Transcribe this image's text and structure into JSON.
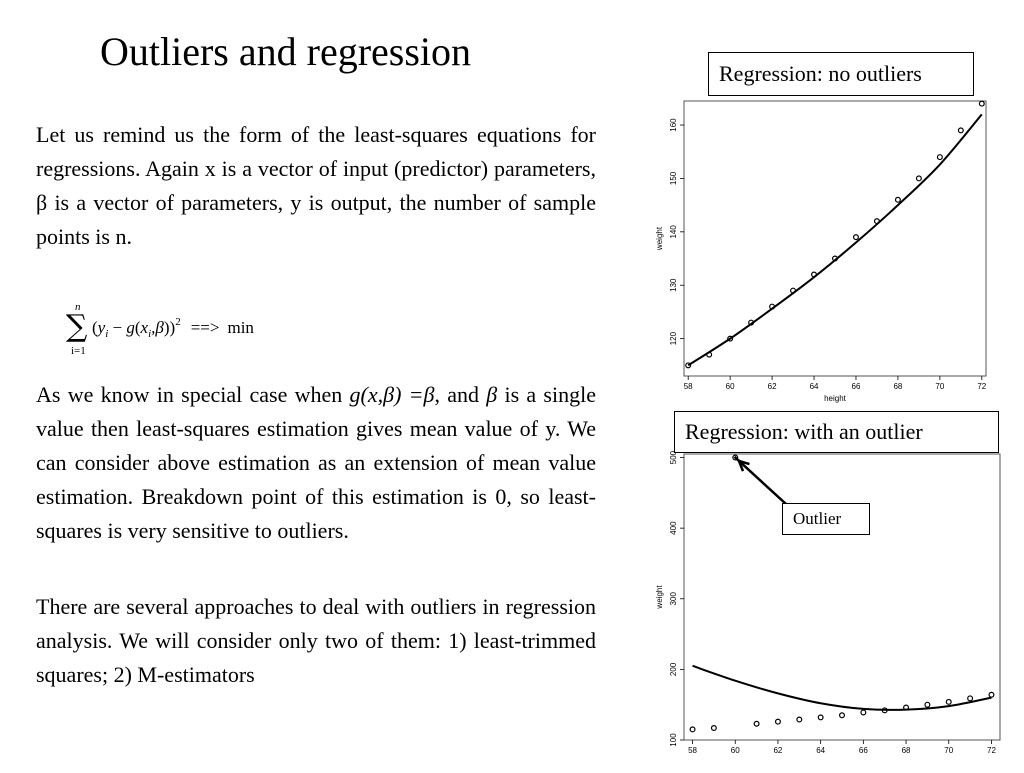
{
  "slide": {
    "title": "Outliers and regression",
    "paragraph1": "Let us remind us the form of the least-squares equations for regressions. Again x is a vector of input (predictor) parameters, β is a vector of parameters, y is output, the number of sample points is n.",
    "formula": {
      "upper": "n",
      "lower": "i=1",
      "sum": "∑",
      "open": "(",
      "y": "y",
      "sub_i1": "i",
      "minus": " − ",
      "g": "g",
      "paren_x": "(",
      "x": "x",
      "sub_i2": "i",
      "comma_beta": ",β",
      "close": "))",
      "power": "2",
      "arrow": "==>",
      "min": "min"
    },
    "paragraph2": {
      "before_g": "As we know in special case when ",
      "g_expr": "g(x,β) =β",
      "after_g": ", and ",
      "beta": "β",
      "rest": " is a single value then least-squares estimation gives mean value of y. We can consider above estimation as an extension of mean value estimation. Breakdown point of this estimation is 0, so least-squares is very sensitive to outliers."
    },
    "paragraph3": "There are several approaches to deal with outliers in regression analysis. We will consider only two of them: 1) least-trimmed squares; 2) M-estimators",
    "label_no_outliers": "Regression: no outliers",
    "label_with_outlier": "Regression: with an outlier",
    "label_outlier": "Outlier"
  },
  "chart_data": [
    {
      "type": "scatter",
      "title": "",
      "xlabel": "height",
      "ylabel": "weight",
      "xlim": [
        57.8,
        72.2
      ],
      "ylim": [
        113,
        164.5
      ],
      "xticks": [
        58,
        60,
        62,
        64,
        66,
        68,
        70,
        72
      ],
      "yticks": [
        120,
        130,
        140,
        150,
        160
      ],
      "x": [
        58,
        59,
        60,
        61,
        62,
        63,
        64,
        65,
        66,
        67,
        68,
        69,
        70,
        71,
        72
      ],
      "y": [
        115,
        117,
        120,
        123,
        126,
        129,
        132,
        135,
        139,
        142,
        146,
        150,
        154,
        159,
        164
      ],
      "fit_curve": {
        "x": [
          58,
          60,
          62,
          64,
          66,
          68,
          70,
          72
        ],
        "y": [
          115,
          120,
          125.6,
          131.5,
          138,
          145,
          152.6,
          162
        ]
      },
      "grid": false
    },
    {
      "type": "scatter",
      "title": "",
      "xlabel": "",
      "ylabel": "weight",
      "xlim": [
        57.6,
        72.4
      ],
      "ylim": [
        100,
        505
      ],
      "xticks": [
        58,
        60,
        62,
        64,
        66,
        68,
        70,
        72
      ],
      "yticks": [
        100,
        200,
        300,
        400,
        500
      ],
      "x": [
        58,
        59,
        60,
        61,
        62,
        63,
        64,
        65,
        66,
        67,
        68,
        69,
        70,
        71,
        72
      ],
      "y": [
        115,
        117,
        500,
        123,
        126,
        129,
        132,
        135,
        139,
        142,
        146,
        150,
        154,
        159,
        164
      ],
      "fit_curve": {
        "x": [
          58,
          60,
          62,
          64,
          66,
          68,
          70,
          72
        ],
        "y": [
          205,
          184,
          166,
          152,
          144,
          143,
          148,
          160
        ]
      },
      "grid": false
    }
  ]
}
